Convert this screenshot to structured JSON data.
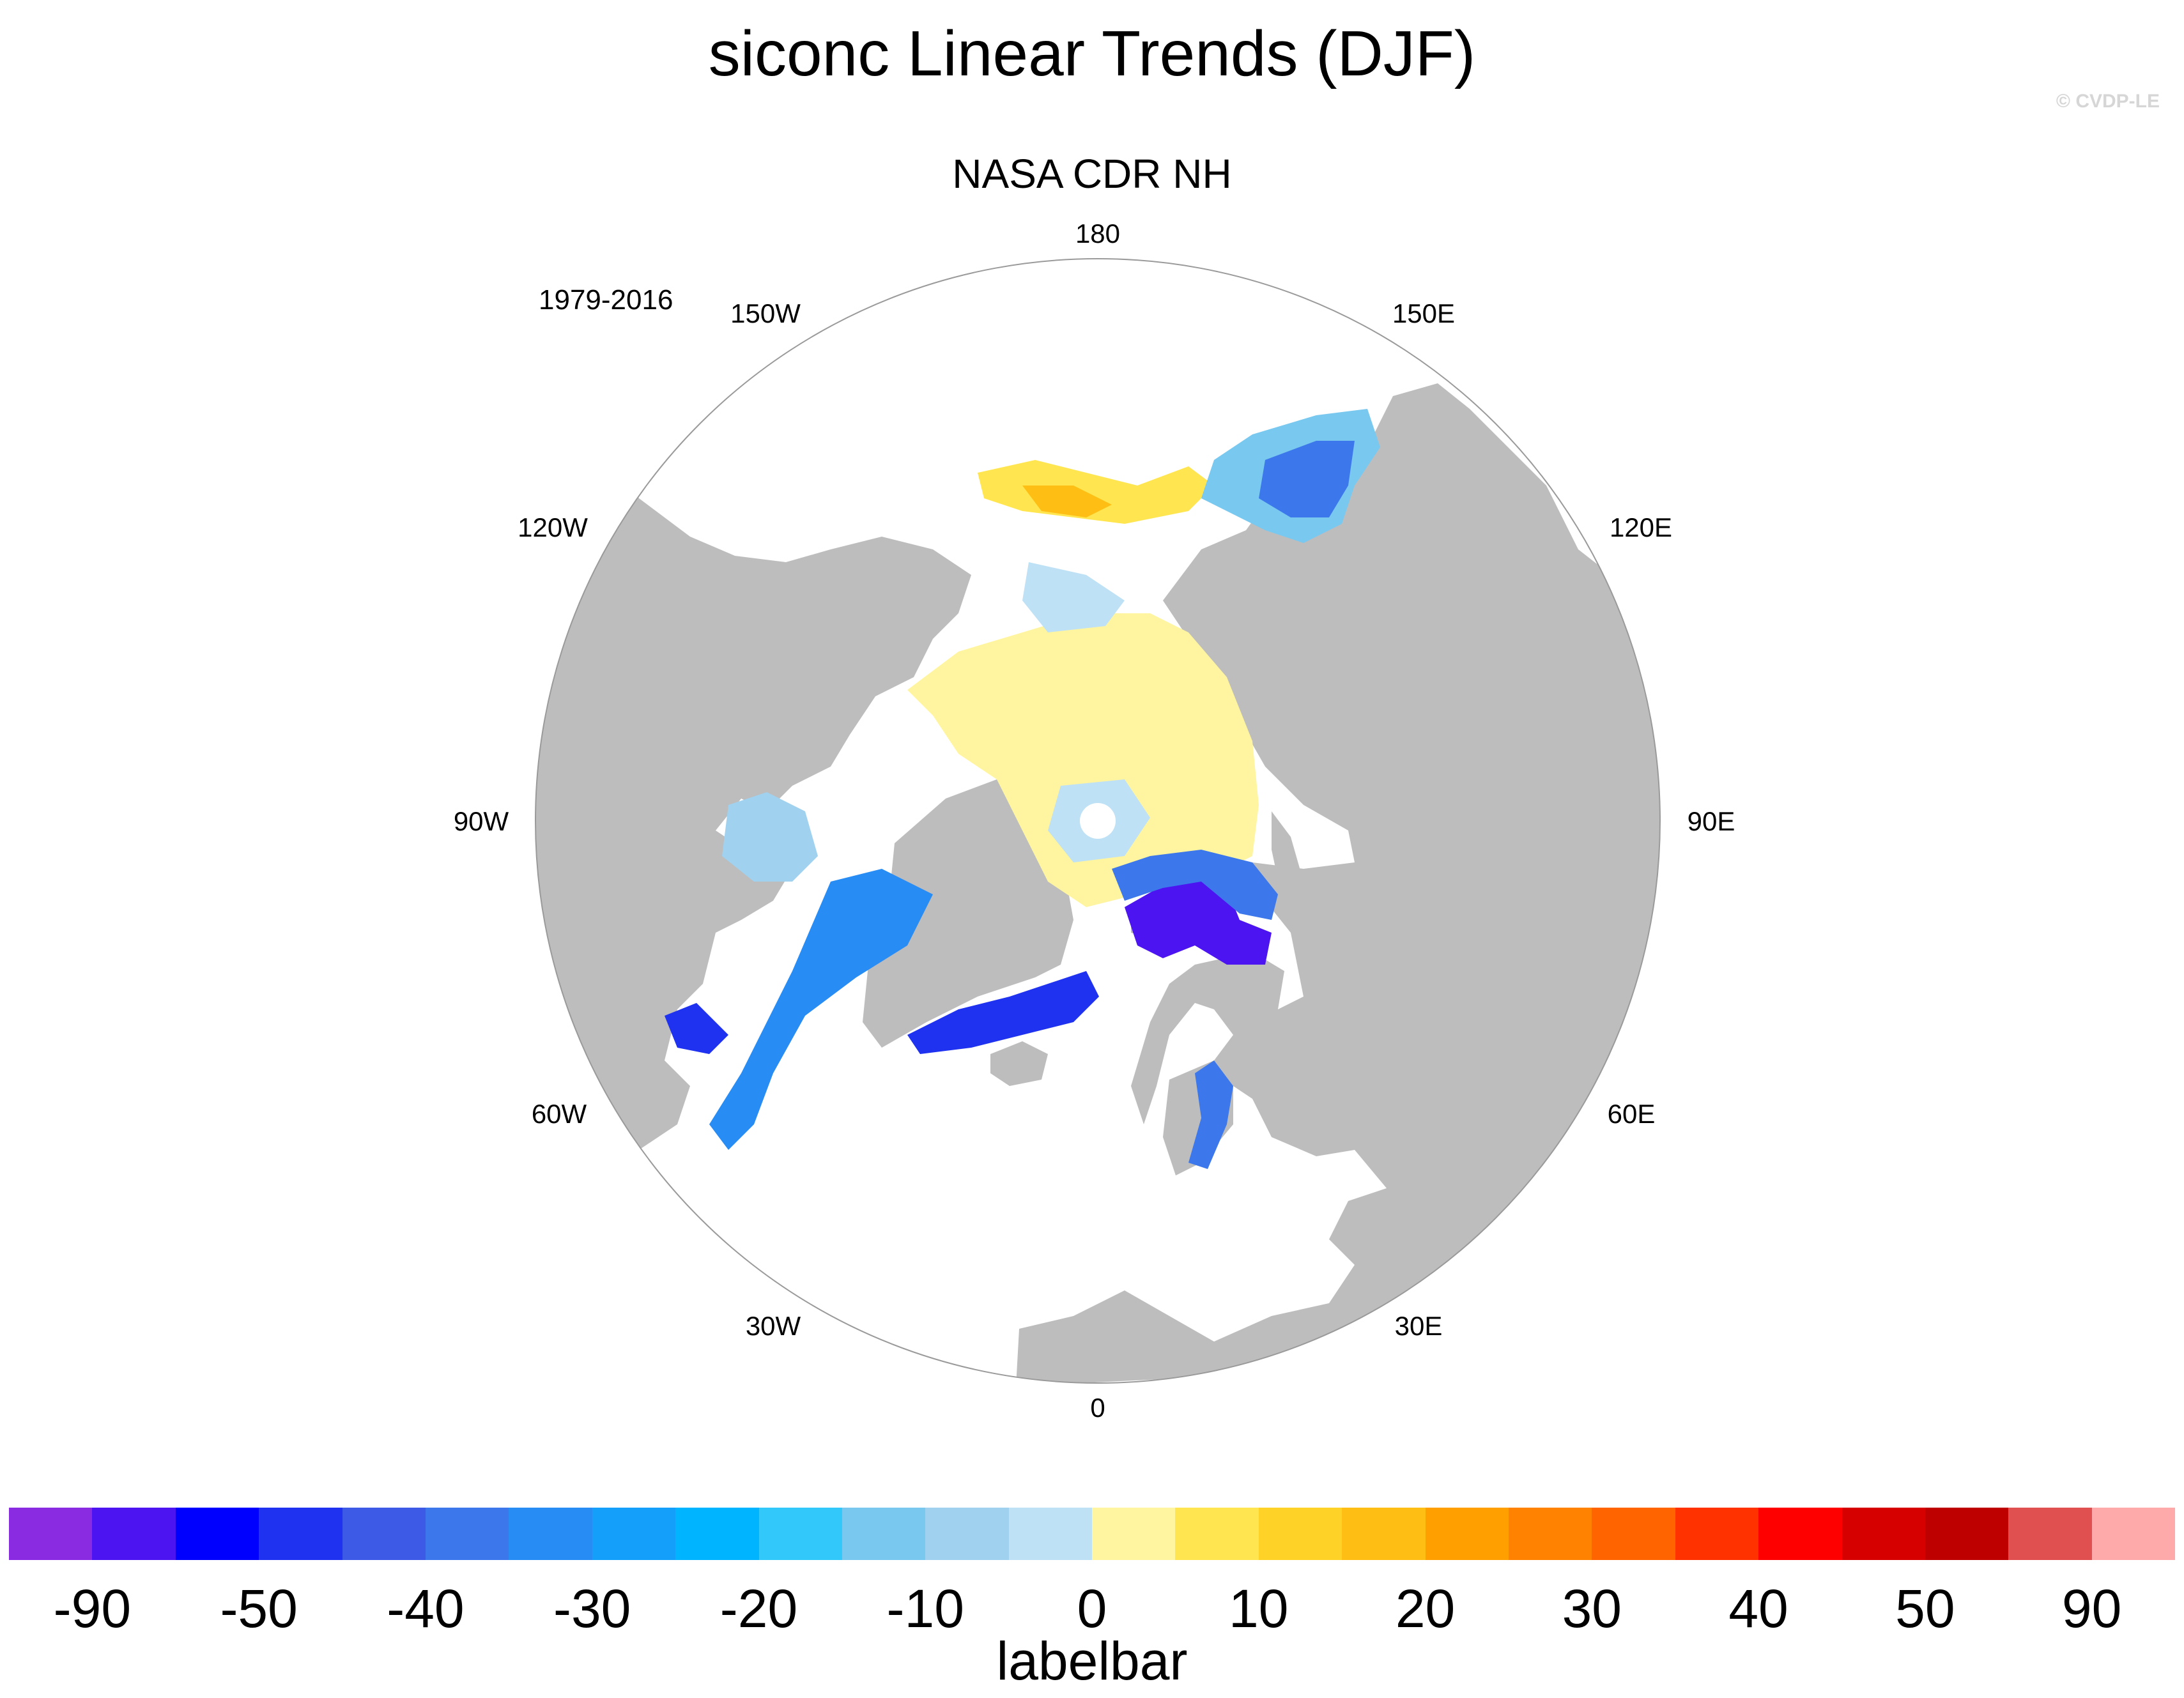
{
  "title": "siconc Linear Trends (DJF)",
  "watermark": "© CVDP-LE",
  "subtitle": "NASA CDR NH",
  "period": "1979-2016",
  "longitude_labels": {
    "lon_180": "180",
    "lon_150e": "150E",
    "lon_120e": "120E",
    "lon_90e": "90E",
    "lon_60e": "60E",
    "lon_30e": "30E",
    "lon_0": "0",
    "lon_30w": "30W",
    "lon_60w": "60W",
    "lon_90w": "90W",
    "lon_120w": "120W",
    "lon_150w": "150W"
  },
  "colors": {
    "land": "#bdbdbd",
    "ocean": "#ffffff",
    "map_outline": "#9a9a9a"
  },
  "colorbar": {
    "title": "labelbar",
    "colors": [
      "#8a2be2",
      "#4b14f0",
      "#0000ff",
      "#1e32f0",
      "#3c5ae6",
      "#3c78eb",
      "#288cf5",
      "#14a0fa",
      "#00b4ff",
      "#32c8fa",
      "#78c8f0",
      "#a0d2f0",
      "#bee1f5",
      "#fff5a0",
      "#ffe650",
      "#ffd228",
      "#ffbe14",
      "#ffa000",
      "#ff8200",
      "#ff6400",
      "#ff3200",
      "#ff0000",
      "#d70000",
      "#be0000",
      "#e15050",
      "#ffaaaa"
    ],
    "tick_labels": [
      "-90",
      "-50",
      "-40",
      "-30",
      "-20",
      "-10",
      "0",
      "10",
      "20",
      "30",
      "40",
      "50",
      "90"
    ]
  }
}
